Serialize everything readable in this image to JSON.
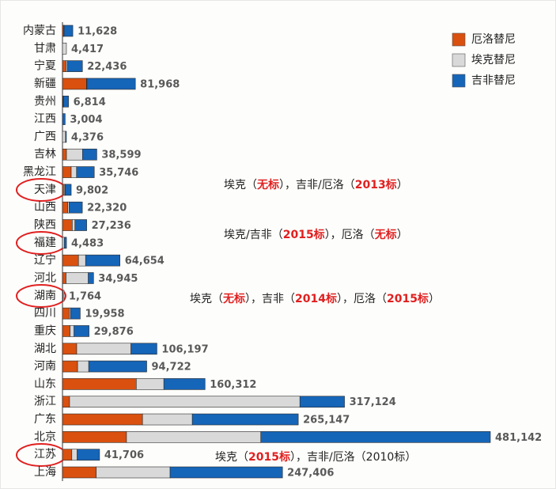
{
  "chart_data": {
    "type": "stacked-barh",
    "categories": [
      "内蒙古",
      "甘肃",
      "宁夏",
      "新疆",
      "贵州",
      "江西",
      "广西",
      "吉林",
      "黑龙江",
      "天津",
      "山西",
      "陕西",
      "福建",
      "辽宁",
      "河北",
      "湖南",
      "四川",
      "重庆",
      "湖北",
      "河南",
      "山东",
      "浙江",
      "广东",
      "北京",
      "江苏",
      "上海"
    ],
    "series": [
      {
        "name": "厄洛替尼",
        "color": "#d9500f",
        "values": [
          1500,
          0,
          4000,
          27000,
          500,
          0,
          0,
          4500,
          9800,
          2000,
          6000,
          11000,
          0,
          18000,
          4000,
          500,
          7500,
          8500,
          16000,
          17000,
          83000,
          8000,
          90000,
          72000,
          10500,
          38000
        ]
      },
      {
        "name": "埃克替尼",
        "color": "#d9d9d9",
        "values": [
          300,
          4417,
          1500,
          500,
          500,
          0,
          3376,
          18000,
          6000,
          1000,
          1500,
          3000,
          2000,
          8000,
          25000,
          1264,
          1500,
          4500,
          61000,
          12500,
          31000,
          259000,
          56000,
          151000,
          6000,
          83000
        ]
      },
      {
        "name": "吉非替尼",
        "color": "#1565b8",
        "values": [
          9828,
          0,
          16936,
          54468,
          5814,
          3004,
          1000,
          16099,
          19946,
          6802,
          14820,
          13236,
          2483,
          38654,
          5945,
          0,
          10958,
          16876,
          29197,
          65222,
          46312,
          50124,
          119147,
          258142,
          25206,
          126406
        ]
      }
    ],
    "totals": [
      11628,
      4417,
      22436,
      81968,
      6814,
      3004,
      4376,
      38599,
      35746,
      9802,
      22320,
      27236,
      4483,
      64654,
      34945,
      1764,
      19958,
      29876,
      106197,
      94722,
      160312,
      317124,
      265147,
      481142,
      41706,
      247406
    ],
    "total_labels": [
      "11,628",
      "4,417",
      "22,436",
      "81,968",
      "6,814",
      "3,004",
      "4,376",
      "38,599",
      "35,746",
      "9,802",
      "22,320",
      "27,236",
      "4,483",
      "64,654",
      "34,945",
      "1,764",
      "19,958",
      "29,876",
      "106,197",
      "94,722",
      "160,312",
      "317,124",
      "265,147",
      "481,142",
      "41,706",
      "247,406"
    ],
    "xlim": [
      0,
      481142
    ],
    "legend": "upper right",
    "annotations": [
      {
        "parts": [
          {
            "text": "埃克（",
            "color": "#222"
          },
          {
            "text": "无标",
            "color": "#e02020"
          },
          {
            "text": "），吉非/厄洛（",
            "color": "#222"
          },
          {
            "text": "2013标",
            "color": "#e02020"
          },
          {
            "text": "）",
            "color": "#222"
          }
        ]
      },
      {
        "parts": [
          {
            "text": "埃克/吉非（",
            "color": "#222"
          },
          {
            "text": "2015标",
            "color": "#e02020"
          },
          {
            "text": "），厄洛（",
            "color": "#222"
          },
          {
            "text": "无标",
            "color": "#e02020"
          },
          {
            "text": "）",
            "color": "#222"
          }
        ]
      },
      {
        "parts": [
          {
            "text": "埃克（",
            "color": "#222"
          },
          {
            "text": "无标",
            "color": "#e02020"
          },
          {
            "text": "），吉非（",
            "color": "#222"
          },
          {
            "text": "2014标",
            "color": "#e02020"
          },
          {
            "text": "），厄洛（",
            "color": "#222"
          },
          {
            "text": "2015标",
            "color": "#e02020"
          },
          {
            "text": "）",
            "color": "#222"
          }
        ]
      },
      {
        "parts": [
          {
            "text": "埃克（",
            "color": "#222"
          },
          {
            "text": "2015标",
            "color": "#e02020"
          },
          {
            "text": "），吉非/厄洛（2010标）",
            "color": "#222"
          }
        ]
      }
    ]
  }
}
